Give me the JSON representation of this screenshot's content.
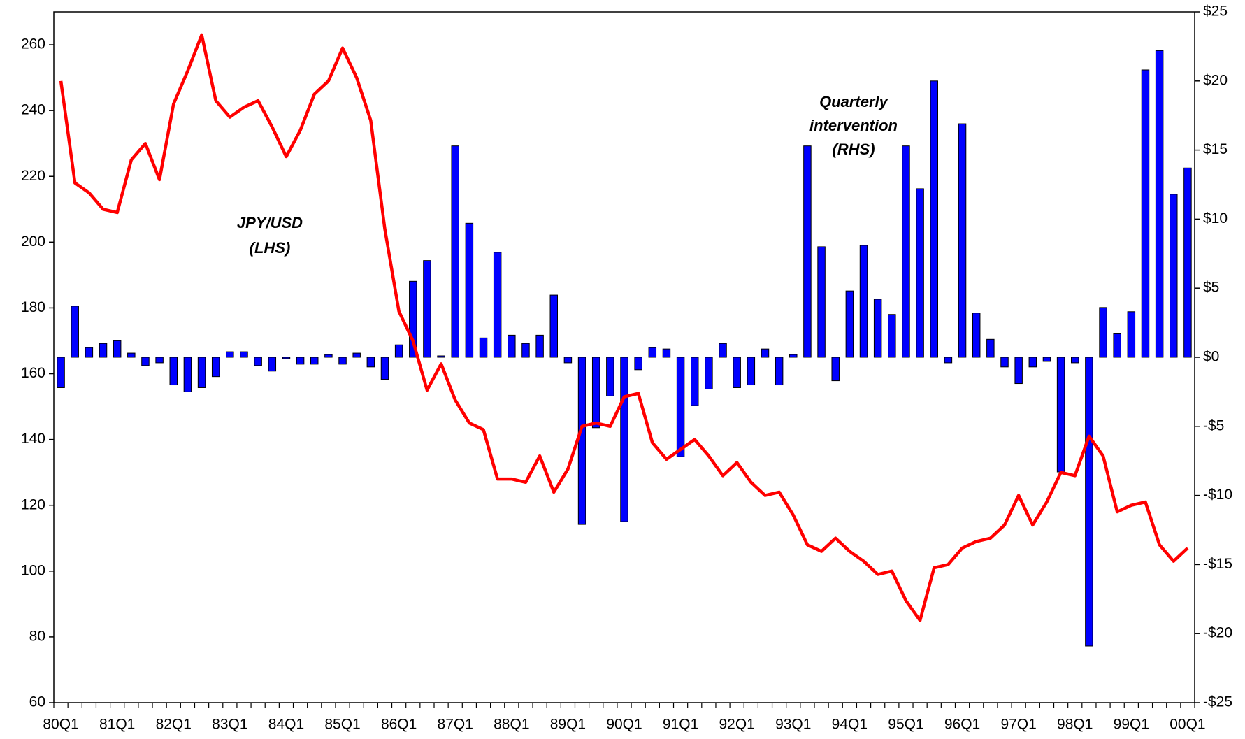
{
  "chart_data": {
    "type": "combo",
    "categories": [
      "80Q1",
      null,
      null,
      null,
      "81Q1",
      null,
      null,
      null,
      "82Q1",
      null,
      null,
      null,
      "83Q1",
      null,
      null,
      null,
      "84Q1",
      null,
      null,
      null,
      "85Q1",
      null,
      null,
      null,
      "86Q1",
      null,
      null,
      null,
      "87Q1",
      null,
      null,
      null,
      "88Q1",
      null,
      null,
      null,
      "89Q1",
      null,
      null,
      null,
      "90Q1",
      null,
      null,
      null,
      "91Q1",
      null,
      null,
      null,
      "92Q1",
      null,
      null,
      null,
      "93Q1",
      null,
      null,
      null,
      "94Q1",
      null,
      null,
      null,
      "95Q1",
      null,
      null,
      null,
      "96Q1",
      null,
      null,
      null,
      "97Q1",
      null,
      null,
      null,
      "98Q1",
      null,
      null,
      null,
      "99Q1",
      null,
      null,
      null,
      "00Q1"
    ],
    "series": [
      {
        "type": "line",
        "color": "#ff0000",
        "values": [
          249,
          218,
          215,
          210,
          209,
          225,
          230,
          219,
          242,
          252,
          263,
          243,
          238,
          241,
          243,
          235,
          226,
          234,
          245,
          249,
          259,
          250,
          237,
          204,
          179,
          170,
          155,
          163,
          152,
          145,
          143,
          128,
          128,
          127,
          135,
          124,
          131,
          144,
          145,
          144,
          153,
          154,
          139,
          134,
          137,
          140,
          135,
          129,
          133,
          127,
          123,
          124,
          117,
          108,
          106,
          110,
          106,
          103,
          99,
          100,
          91,
          85,
          101,
          102,
          107,
          109,
          110,
          114,
          123,
          114,
          121,
          130,
          129,
          141,
          135,
          118,
          120,
          121,
          108,
          103,
          107
        ]
      },
      {
        "type": "bar",
        "axis": "y2",
        "color": "#0000ff",
        "values": [
          -2.2,
          3.7,
          0.7,
          1.0,
          1.2,
          0.3,
          -0.6,
          -0.4,
          -2.0,
          -2.5,
          -2.2,
          -1.4,
          0.4,
          0.4,
          -0.6,
          -1.0,
          -0.1,
          -0.5,
          -0.5,
          0.2,
          -0.5,
          0.3,
          -0.7,
          -1.6,
          0.9,
          5.5,
          7.0,
          0.1,
          15.3,
          9.7,
          1.4,
          7.6,
          1.6,
          1.0,
          1.6,
          4.5,
          -0.4,
          -12.1,
          -5.1,
          -2.8,
          -11.9,
          -0.9,
          0.7,
          0.6,
          -7.2,
          -3.5,
          -2.3,
          1.0,
          -2.2,
          -2.0,
          0.6,
          -2.0,
          0.2,
          15.3,
          8.0,
          -1.7,
          4.8,
          8.1,
          4.2,
          3.1,
          15.3,
          12.2,
          20.0,
          -0.4,
          16.9,
          3.2,
          1.3,
          -0.7,
          -1.9,
          -0.7,
          -0.3,
          -8.3,
          -0.4,
          -20.9,
          3.6,
          1.7,
          3.3,
          20.8,
          22.2,
          11.8,
          13.7
        ]
      }
    ],
    "ylim": [
      60,
      270
    ],
    "yticks": [
      60,
      80,
      100,
      120,
      140,
      160,
      180,
      200,
      220,
      240,
      260
    ],
    "y2lim": [
      -25,
      25
    ],
    "y2ticks": [
      {
        "value": 25,
        "label": "$25"
      },
      {
        "value": 20,
        "label": "$20"
      },
      {
        "value": 15,
        "label": "$15"
      },
      {
        "value": 10,
        "label": "$10"
      },
      {
        "value": 5,
        "label": "$5"
      },
      {
        "value": 0,
        "label": "$0"
      },
      {
        "value": -5,
        "label": "-$5"
      },
      {
        "value": -10,
        "label": "-$10"
      },
      {
        "value": -15,
        "label": "-$15"
      },
      {
        "value": -20,
        "label": "-$20"
      },
      {
        "value": -25,
        "label": "-$25"
      }
    ],
    "annotations": [
      {
        "lines": [
          "JPY/USD",
          "(LHS)"
        ]
      },
      {
        "lines": [
          "Quarterly",
          "intervention",
          "(RHS)"
        ]
      }
    ]
  }
}
